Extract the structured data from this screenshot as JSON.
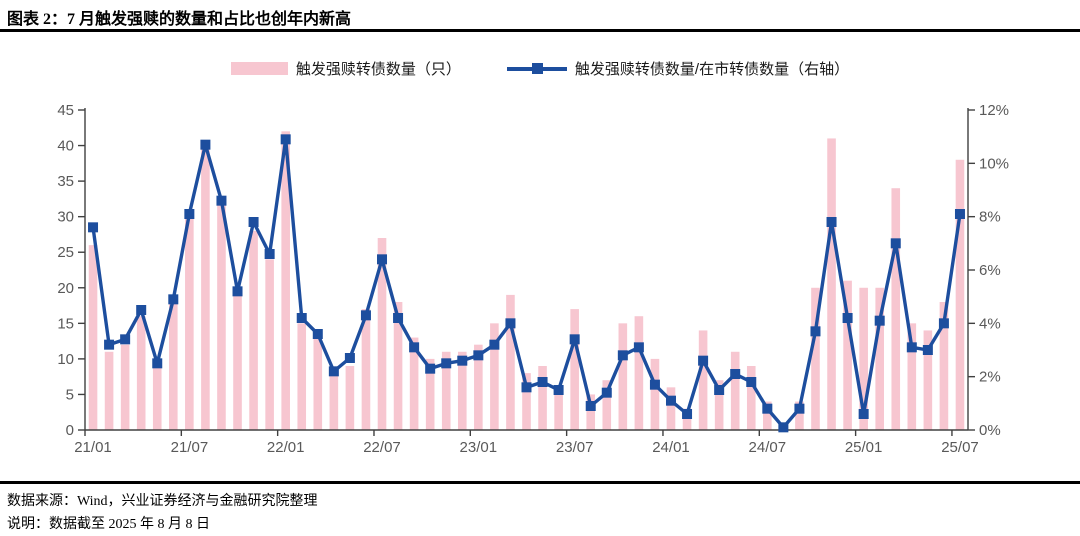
{
  "title": "图表 2：7 月触发强赎的数量和占比也创年内新高",
  "legend": {
    "bars_label": "触发强赎转债数量（只）",
    "line_label": "触发强赎转债数量/在市转债数量（右轴）"
  },
  "footer": {
    "source": "数据来源：Wind，兴业证券经济与金融研究院整理",
    "note": "说明：数据截至 2025 年 8 月 8 日"
  },
  "colors": {
    "bar": "#F7C6D0",
    "line": "#1D4E9E",
    "axis_text": "#595959",
    "axis_line": "#404040"
  },
  "chart_data": {
    "type": "bar",
    "title": "图表 2：7 月触发强赎的数量和占比也创年内新高",
    "months": [
      "21/01",
      "21/02",
      "21/03",
      "21/04",
      "21/05",
      "21/06",
      "21/07",
      "21/08",
      "21/09",
      "21/10",
      "21/11",
      "21/12",
      "22/01",
      "22/02",
      "22/03",
      "22/04",
      "22/05",
      "22/06",
      "22/07",
      "22/08",
      "22/09",
      "22/10",
      "22/11",
      "22/12",
      "23/01",
      "23/02",
      "23/03",
      "23/04",
      "23/05",
      "23/06",
      "23/07",
      "23/08",
      "23/09",
      "23/10",
      "23/11",
      "23/12",
      "24/01",
      "24/02",
      "24/03",
      "24/04",
      "24/05",
      "24/06",
      "24/07",
      "24/08",
      "24/09",
      "24/10",
      "24/11",
      "24/12",
      "25/01",
      "25/02",
      "25/03",
      "25/04",
      "25/05",
      "25/06",
      "25/07"
    ],
    "x_tick_labels": [
      "21/01",
      "21/07",
      "22/01",
      "22/07",
      "23/01",
      "23/07",
      "24/01",
      "24/07",
      "25/01",
      "25/07"
    ],
    "series": [
      {
        "name": "触发强赎转债数量（只）",
        "type": "bar",
        "axis": "left",
        "values": [
          26,
          11,
          12,
          16,
          9,
          18,
          30,
          40,
          32,
          19,
          28,
          24,
          42,
          15,
          13,
          8,
          9,
          17,
          27,
          18,
          13,
          10,
          11,
          11,
          12,
          15,
          19,
          8,
          9,
          6,
          17,
          5,
          7,
          15,
          16,
          10,
          6,
          3,
          14,
          7,
          11,
          9,
          4,
          1,
          4,
          20,
          41,
          21,
          20,
          20,
          34,
          15,
          14,
          18,
          38
        ]
      },
      {
        "name": "触发强赎转债数量/在市转债数量（右轴）",
        "type": "line",
        "axis": "right",
        "unit": "%",
        "values": [
          7.6,
          3.2,
          3.4,
          4.5,
          2.5,
          4.9,
          8.1,
          10.7,
          8.6,
          5.2,
          7.8,
          6.6,
          10.9,
          4.2,
          3.6,
          2.2,
          2.7,
          4.3,
          6.4,
          4.2,
          3.1,
          2.3,
          2.5,
          2.6,
          2.8,
          3.2,
          4.0,
          1.6,
          1.8,
          1.5,
          3.4,
          0.9,
          1.4,
          2.8,
          3.1,
          1.7,
          1.1,
          0.6,
          2.6,
          1.5,
          2.1,
          1.8,
          0.8,
          0.1,
          0.8,
          3.7,
          7.8,
          4.2,
          0.6,
          4.1,
          7.0,
          3.1,
          3.0,
          4.0,
          8.1
        ]
      }
    ],
    "left_axis": {
      "min": 0,
      "max": 45,
      "step": 5
    },
    "right_axis": {
      "min": 0,
      "max": 12,
      "step": 2,
      "suffix": "%"
    },
    "grid": false,
    "legend_position": "top"
  }
}
